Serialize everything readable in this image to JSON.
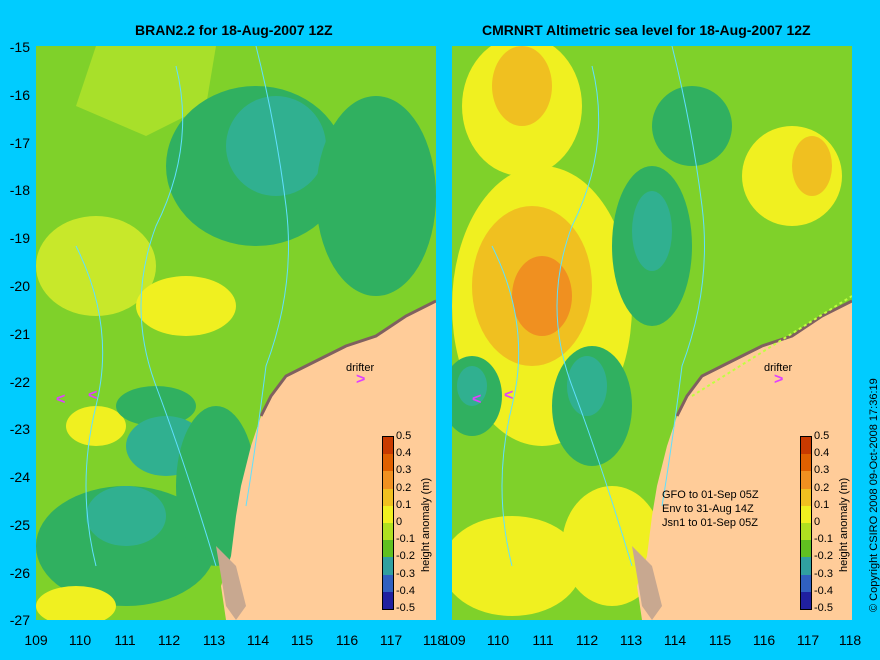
{
  "panels": [
    {
      "title": "BRAN2.2 for 18-Aug-2007 12Z"
    },
    {
      "title": "CMRNRT Altimetric sea level  for 18-Aug-2007 12Z"
    }
  ],
  "y_ticks": [
    "-15",
    "-16",
    "-17",
    "-18",
    "-19",
    "-20",
    "-21",
    "-22",
    "-23",
    "-24",
    "-25",
    "-26",
    "-27"
  ],
  "x_ticks": [
    "109",
    "110",
    "111",
    "112",
    "113",
    "114",
    "115",
    "116",
    "117",
    "118"
  ],
  "colorbar": {
    "title": "height anomaly (m)",
    "labels": [
      "0.5",
      "0.4",
      "0.3",
      "0.2",
      "0.1",
      "0",
      "-0.1",
      "-0.2",
      "-0.3",
      "-0.4",
      "-0.5"
    ],
    "colors": [
      "#c83a00",
      "#e06000",
      "#f09020",
      "#f0c020",
      "#f0f020",
      "#b0e020",
      "#60c020",
      "#30a0a0",
      "#3060c0",
      "#2020a0",
      "#101060"
    ]
  },
  "drifter_label": "drifter",
  "missions": [
    "GFO to 01-Sep 05Z",
    "Env to 31-Aug 14Z",
    "Jsn1 to 01-Sep 05Z"
  ],
  "copyright": "© Copyright CSIRO 2008   09-Oct-2008 17:36:19",
  "colors": {
    "background": "#00ccff",
    "land": "#ffcc99",
    "coast_shelf": "#c8a890"
  }
}
